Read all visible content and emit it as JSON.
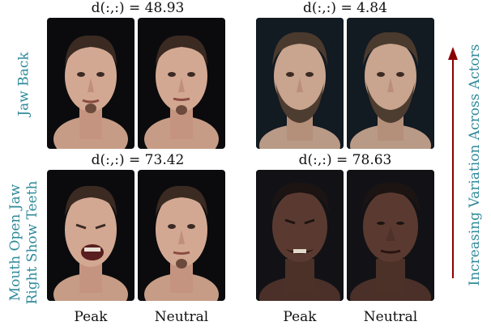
{
  "figure": {
    "row_labels": [
      [
        "Jaw Back"
      ],
      [
        "Mouth Open Jaw",
        "Right Show Teeth"
      ]
    ],
    "distances": [
      "d(:,:) = 48.93",
      "d(:,:) = 4.84",
      "d(:,:) = 73.42",
      "d(:,:) = 78.63"
    ],
    "column_labels": [
      "Peak",
      "Neutral",
      "Peak",
      "Neutral"
    ],
    "side_label": "Increasing Variation Across Actors",
    "colors": {
      "label": "#2f8a9a",
      "arrow": "#8b0000",
      "photo_background": "#0b0b0d"
    }
  }
}
